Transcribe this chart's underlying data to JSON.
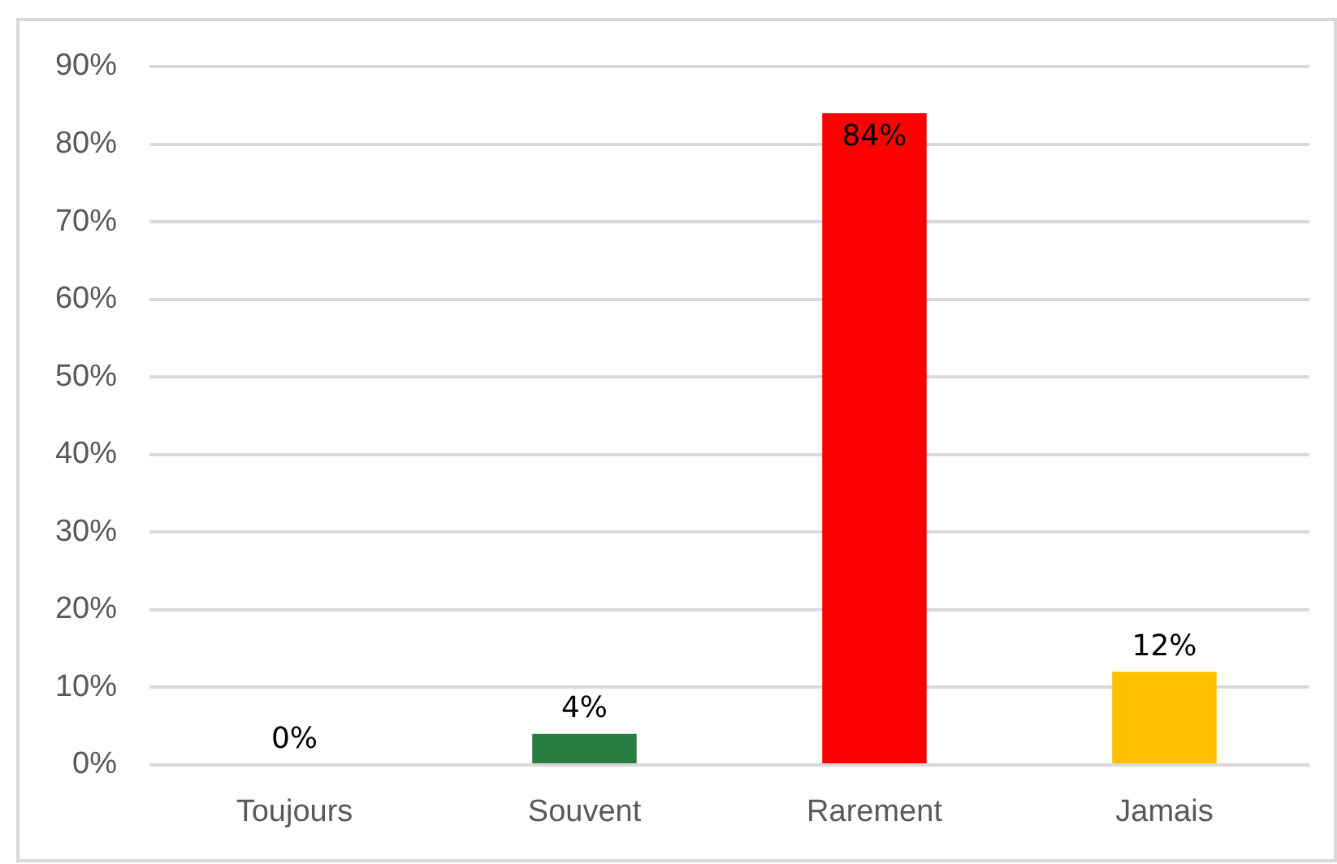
{
  "chart_data": {
    "type": "bar",
    "categories": [
      "Toujours",
      "Souvent",
      "Rarement",
      "Jamais"
    ],
    "values": [
      0,
      4,
      84,
      12
    ],
    "colors": [
      null,
      "#2a7d40",
      "#ff0000",
      "#ffc000"
    ],
    "value_labels": [
      "0%",
      "4%",
      "84%",
      "12%"
    ],
    "ylim": [
      0,
      90
    ],
    "yticks": [
      {
        "value": 0,
        "label": "0%"
      },
      {
        "value": 10,
        "label": "10%"
      },
      {
        "value": 20,
        "label": "20%"
      },
      {
        "value": 30,
        "label": "30%"
      },
      {
        "value": 40,
        "label": "40%"
      },
      {
        "value": 50,
        "label": "50%"
      },
      {
        "value": 60,
        "label": "60%"
      },
      {
        "value": 70,
        "label": "70%"
      },
      {
        "value": 80,
        "label": "80%"
      },
      {
        "value": 90,
        "label": "90%"
      }
    ],
    "grid": "y"
  }
}
